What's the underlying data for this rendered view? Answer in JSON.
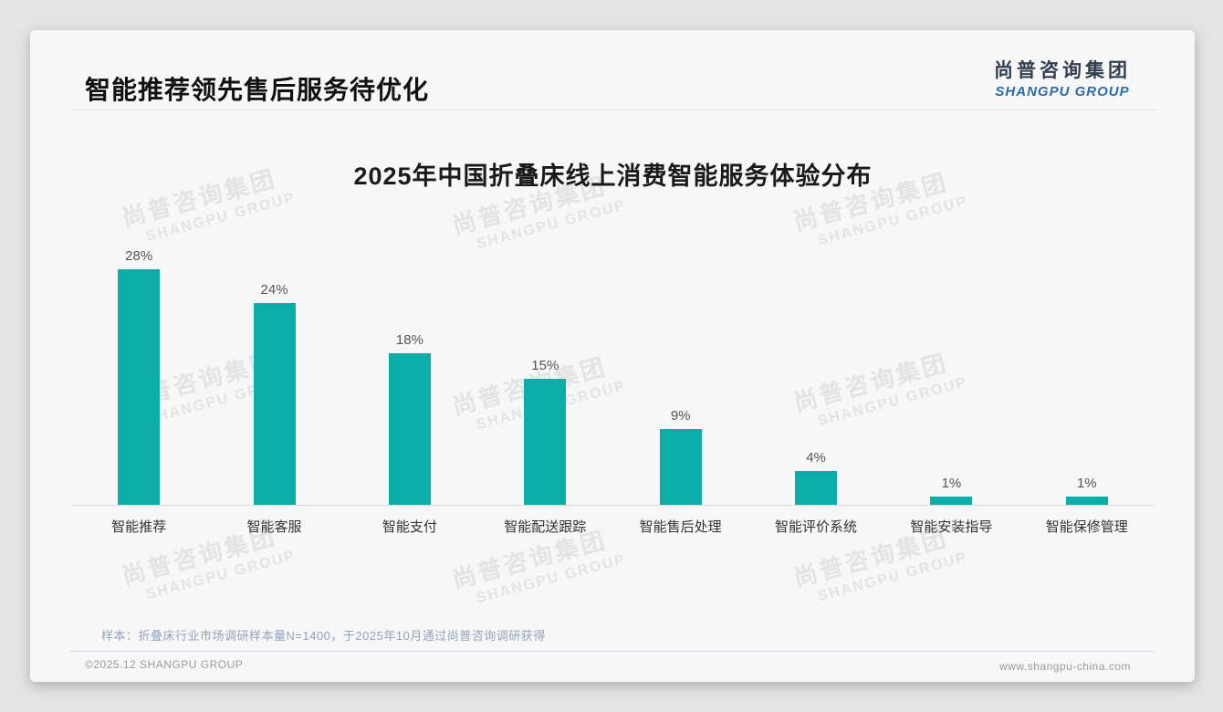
{
  "page": {
    "title": "智能推荐领先售后服务待优化",
    "logo": {
      "cn": "尚普咨询集团",
      "en": "SHANGPU GROUP"
    },
    "watermark": {
      "cn": "尚普咨询集团",
      "en": "SHANGPU GROUP"
    },
    "note": "样本：折叠床行业市场调研样本量N=1400，于2025年10月通过尚普咨询调研获得",
    "footer": {
      "left": "©2025.12 SHANGPU GROUP",
      "right": "www.shangpu-china.com"
    }
  },
  "colors": {
    "bar": "#0bada7",
    "logo_en_blue": "#2e6ca5",
    "logo_cn_navy": "#333f50",
    "note_text": "#94a3bd"
  },
  "chart_data": {
    "type": "bar",
    "title": "2025年中国折叠床线上消费智能服务体验分布",
    "categories": [
      "智能推荐",
      "智能客服",
      "智能支付",
      "智能配送跟踪",
      "智能售后处理",
      "智能评价系统",
      "智能安装指导",
      "智能保修管理"
    ],
    "values": [
      28,
      24,
      18,
      15,
      9,
      4,
      1,
      1
    ],
    "value_labels": [
      "28%",
      "24%",
      "18%",
      "15%",
      "9%",
      "4%",
      "1%",
      "1%"
    ],
    "unit": "%",
    "ylim": [
      0,
      30
    ],
    "grid": false,
    "legend": "none",
    "bar_color": "#0bada7",
    "xlabel": "",
    "ylabel": ""
  }
}
